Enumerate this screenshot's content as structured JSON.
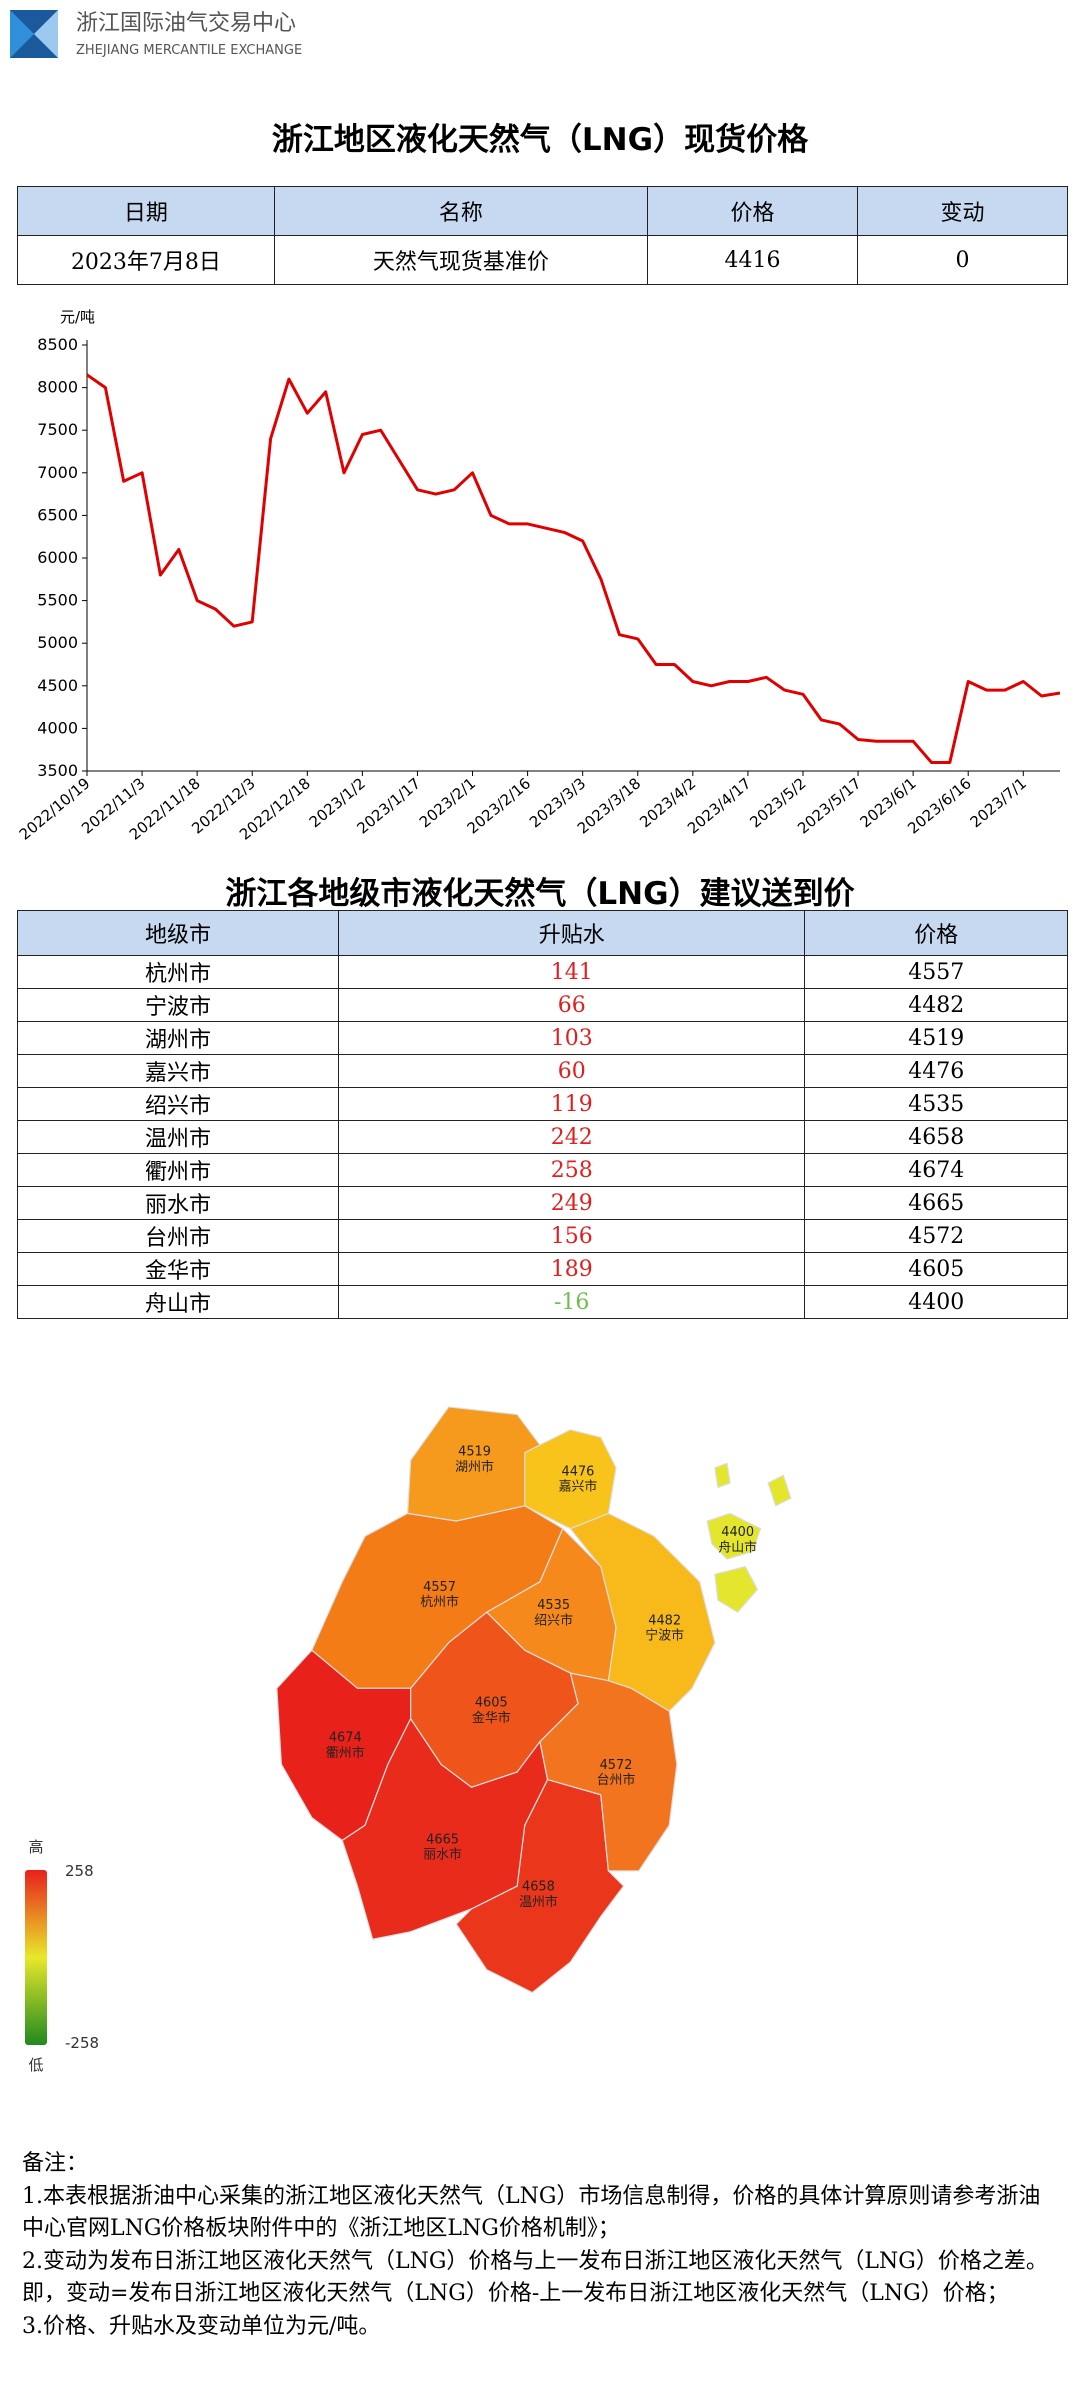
{
  "header": {
    "org": "浙江国际油气交易中心",
    "org_en": "ZHEJIANG MERCANTILE EXCHANGE"
  },
  "title": "浙江地区液化天然气（LNG）现货价格",
  "table": {
    "columns": [
      "日期",
      "名称",
      "价格",
      "变动"
    ],
    "rows": [
      [
        "2023年7月8日",
        "天然气现货基准价",
        4416,
        0
      ]
    ]
  },
  "chart_data": {
    "type": "line",
    "y_label": "元/吨",
    "color": "#e00000",
    "categories": [
      "2022/10/19",
      null,
      null,
      "2022/11/3",
      null,
      null,
      "2022/11/18",
      null,
      null,
      "2022/12/3",
      null,
      null,
      "2022/12/18",
      null,
      null,
      "2023/1/2",
      null,
      null,
      "2023/1/17",
      null,
      null,
      "2023/2/1",
      null,
      null,
      "2023/2/16",
      null,
      null,
      "2023/3/3",
      null,
      null,
      "2023/3/18",
      null,
      null,
      "2023/4/2",
      null,
      null,
      "2023/4/17",
      null,
      null,
      "2023/5/2",
      null,
      null,
      "2023/5/17",
      null,
      null,
      "2023/6/1",
      null,
      null,
      "2023/6/16",
      null,
      null,
      "2023/7/1",
      null,
      null
    ],
    "values": [
      8150,
      8000,
      6900,
      7000,
      5800,
      6100,
      5500,
      5400,
      5200,
      5250,
      7400,
      8100,
      7700,
      7950,
      7000,
      7450,
      7500,
      7150,
      6800,
      6750,
      6800,
      7000,
      6500,
      6400,
      6400,
      6350,
      6300,
      6200,
      5750,
      5100,
      5050,
      4750,
      4750,
      4550,
      4500,
      4550,
      4550,
      4600,
      4450,
      4400,
      4100,
      4050,
      3870,
      3850,
      3850,
      3850,
      3600,
      3600,
      4550,
      4450,
      4450,
      4550,
      4380,
      4416
    ],
    "ylim": [
      3500,
      8500
    ],
    "yticks": [
      3500,
      4000,
      4500,
      5000,
      5500,
      6000,
      6500,
      7000,
      7500,
      8000,
      8500
    ]
  },
  "title2": "浙江各地级市液化天然气（LNG）建议送到价",
  "table2": {
    "columns": [
      "地级市",
      "升贴水",
      "价格"
    ],
    "rows": [
      [
        "杭州市",
        141,
        4557
      ],
      [
        "宁波市",
        66,
        4482
      ],
      [
        "湖州市",
        103,
        4519
      ],
      [
        "嘉兴市",
        60,
        4476
      ],
      [
        "绍兴市",
        119,
        4535
      ],
      [
        "温州市",
        242,
        4658
      ],
      [
        "衢州市",
        258,
        4674
      ],
      [
        "丽水市",
        249,
        4665
      ],
      [
        "台州市",
        156,
        4572
      ],
      [
        "金华市",
        189,
        4605
      ],
      [
        "舟山市",
        -16,
        4400
      ]
    ]
  },
  "map": {
    "regions": [
      {
        "label": "杭州市",
        "value": 4557,
        "color": "#f47c17"
      },
      {
        "label": "宁波市",
        "value": 4482,
        "color": "#f8b91b"
      },
      {
        "label": "湖州市",
        "value": 4519,
        "color": "#f59a1d"
      },
      {
        "label": "嘉兴市",
        "value": 4476,
        "color": "#f8c31b"
      },
      {
        "label": "绍兴市",
        "value": 4535,
        "color": "#f5891b"
      },
      {
        "label": "温州市",
        "value": 4658,
        "color": "#ea361b"
      },
      {
        "label": "衢州市",
        "value": 4674,
        "color": "#e8211b"
      },
      {
        "label": "丽水市",
        "value": 4665,
        "color": "#e92b1b"
      },
      {
        "label": "台州市",
        "value": 4572,
        "color": "#f3741e"
      },
      {
        "label": "金华市",
        "value": 4605,
        "color": "#ef551a"
      },
      {
        "label": "舟山市",
        "value": 4400,
        "color": "#e3e62c"
      }
    ],
    "legend": {
      "high": "高",
      "low": "低",
      "max": 258,
      "min": -258
    }
  },
  "notes": {
    "heading": "备注：",
    "items": [
      "1.本表根据浙油中心采集的浙江地区液化天然气（LNG）市场信息制得，价格的具体计算原则请参考浙油中心官网LNG价格板块附件中的《浙江地区LNG价格机制》；",
      "2.变动为发布日浙江地区液化天然气（LNG）价格与上一发布日浙江地区液化天然气（LNG）价格之差。即，变动=发布日浙江地区液化天然气（LNG）价格-上一发布日浙江地区液化天然气（LNG）价格；",
      "3.价格、升贴水及变动单位为元/吨。"
    ]
  }
}
